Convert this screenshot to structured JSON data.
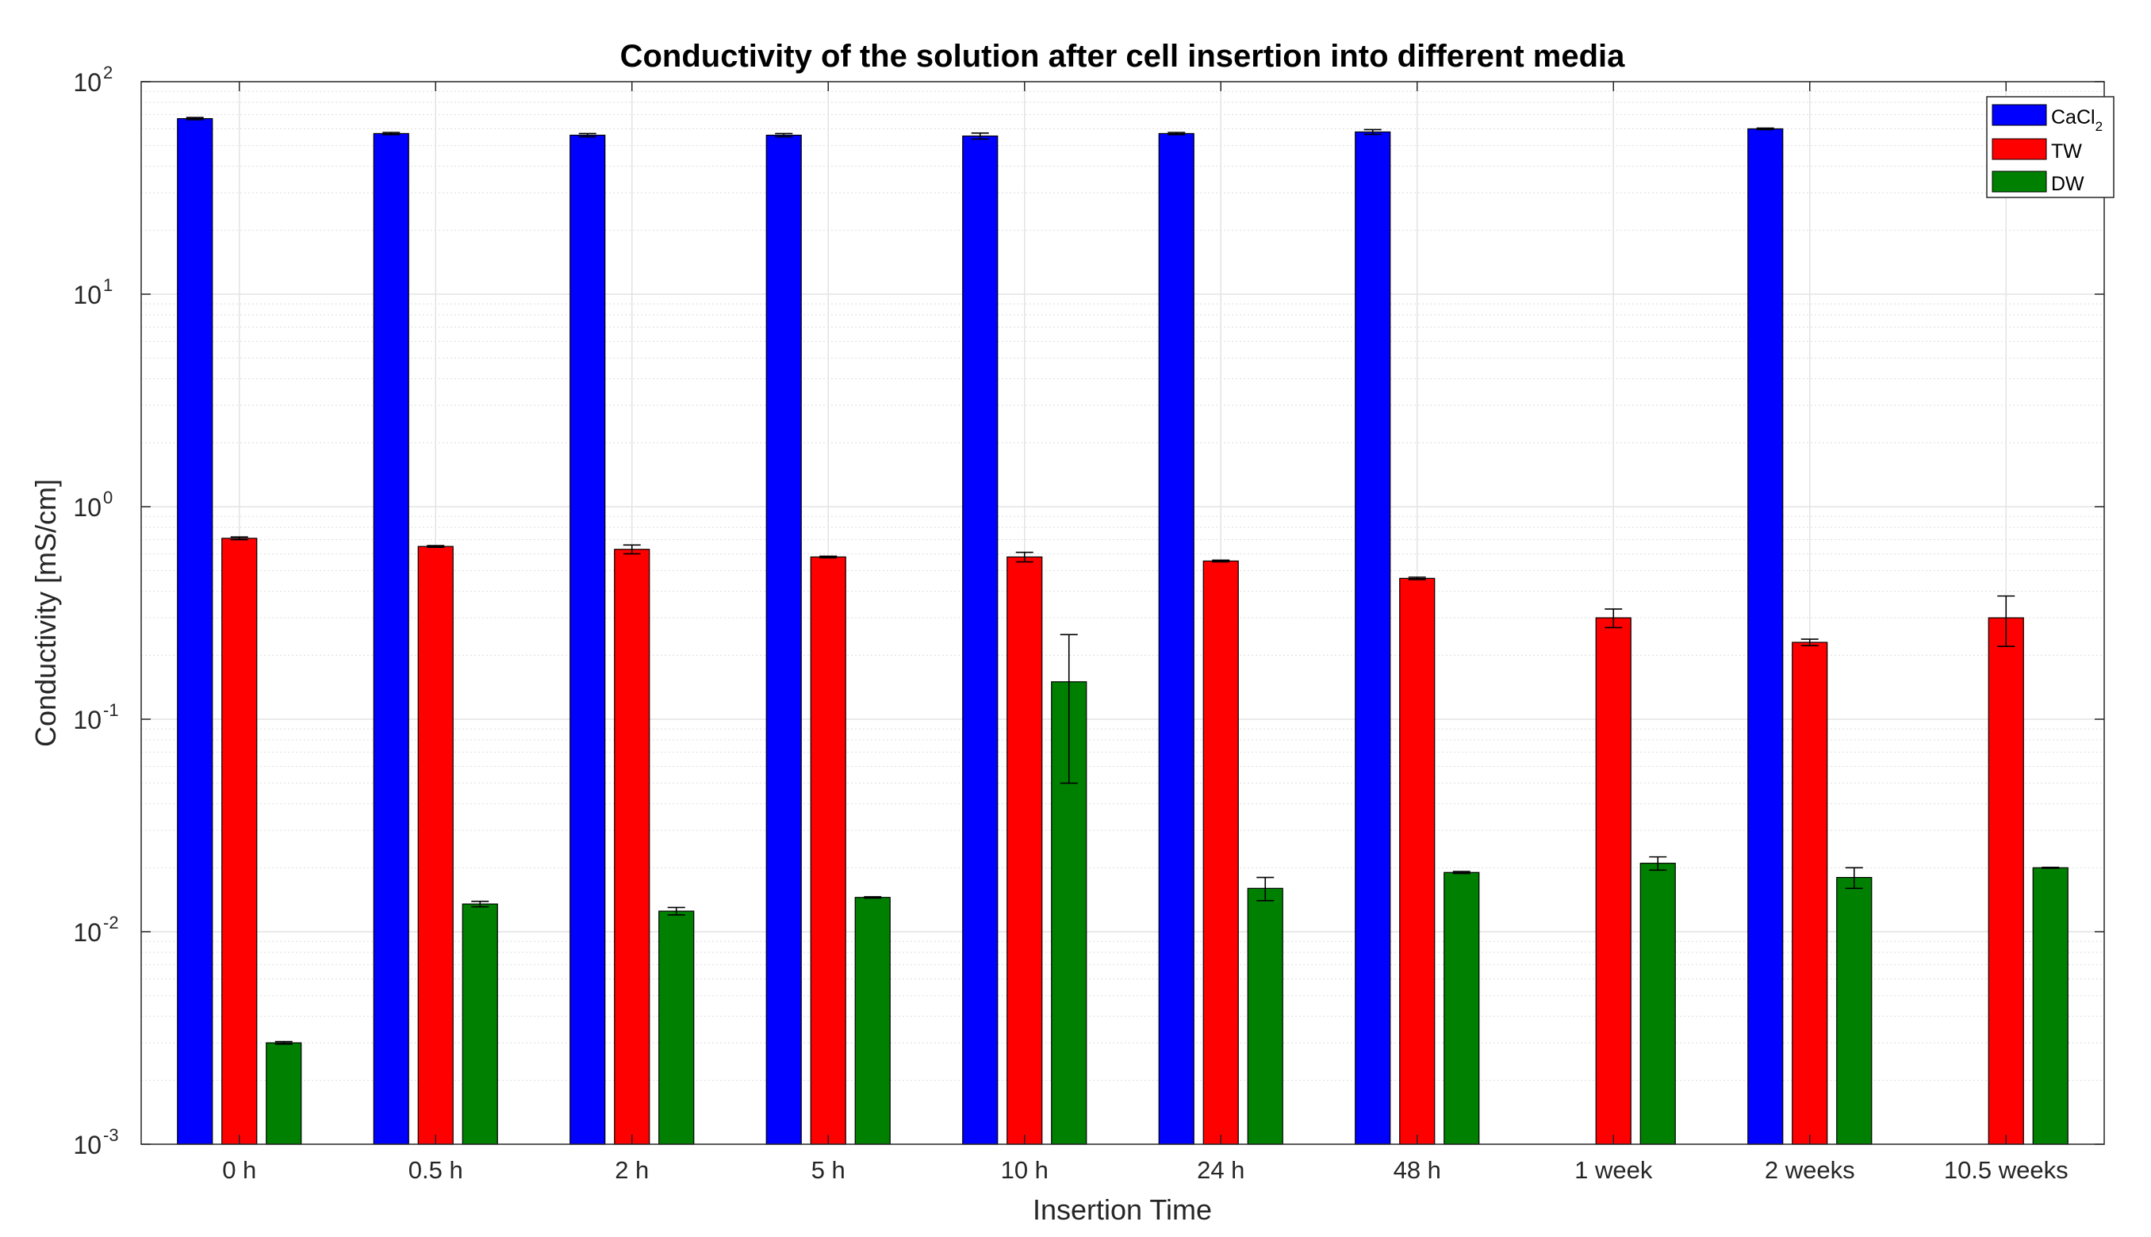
{
  "chart_data": {
    "type": "bar",
    "title": "Conductivity of the solution after cell insertion into different media",
    "xlabel": "Insertion Time",
    "ylabel": "Conductivity [mS/cm]",
    "yscale": "log",
    "ylim": [
      0.001,
      100
    ],
    "yticks": [
      {
        "base": "10",
        "exp": "-3"
      },
      {
        "base": "10",
        "exp": "-2"
      },
      {
        "base": "10",
        "exp": "-1"
      },
      {
        "base": "10",
        "exp": "0"
      },
      {
        "base": "10",
        "exp": "1"
      },
      {
        "base": "10",
        "exp": "2"
      }
    ],
    "grid": true,
    "legend_position": "top-right",
    "categories": [
      "0 h",
      "0.5 h",
      "2 h",
      "5 h",
      "10 h",
      "24 h",
      "48 h",
      "1 week",
      "2 weeks",
      "10.5 weeks"
    ],
    "series": [
      {
        "name": "CaCl",
        "name_sub": "2",
        "color": "#0000ff",
        "values": [
          67,
          57,
          56,
          56,
          55.5,
          57,
          58,
          null,
          60,
          null
        ],
        "errors": [
          0.8,
          0.7,
          1.0,
          1.0,
          1.8,
          0.7,
          1.5,
          null,
          0.5,
          null
        ]
      },
      {
        "name": "TW",
        "name_sub": "",
        "color": "#ff0000",
        "values": [
          0.71,
          0.65,
          0.63,
          0.58,
          0.58,
          0.555,
          0.46,
          0.3,
          0.23,
          0.3
        ],
        "errors": [
          0.01,
          0.006,
          0.03,
          0.005,
          0.03,
          0.005,
          0.006,
          0.03,
          0.008,
          0.08
        ]
      },
      {
        "name": "DW",
        "name_sub": "",
        "color": "#008000",
        "values": [
          0.003,
          0.0135,
          0.0125,
          0.0145,
          0.15,
          0.016,
          0.019,
          0.021,
          0.018,
          0.02
        ],
        "errors": [
          4e-05,
          0.0004,
          0.0005,
          0.0001,
          0.1,
          0.002,
          0.0002,
          0.0015,
          0.002,
          0.0001
        ]
      }
    ]
  }
}
